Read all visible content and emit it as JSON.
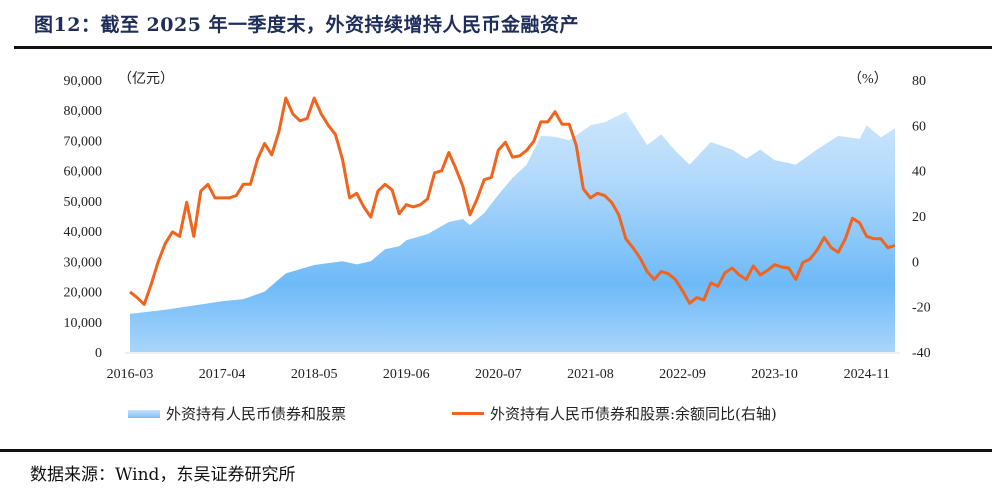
{
  "title": "图12：截至 2025 年一季度末，外资持续增持人民币金融资产",
  "source": "数据来源：Wind，东吴证券研究所",
  "colors": {
    "area_top": "#d9ecfc",
    "area_mid": "#6ebaf8",
    "line": "#f0641e"
  },
  "chart_data": {
    "type": "area+line",
    "title": "",
    "left_axis": {
      "unit_label": "（亿元）",
      "range": [
        0,
        90000
      ],
      "ticks": [
        "0",
        "10,000",
        "20,000",
        "30,000",
        "40,000",
        "50,000",
        "60,000",
        "70,000",
        "80,000",
        "90,000"
      ]
    },
    "right_axis": {
      "unit_label": "（%）",
      "range": [
        -40,
        80
      ],
      "ticks": [
        "-40",
        "-20",
        "0",
        "20",
        "40",
        "60",
        "80"
      ]
    },
    "x_axis": {
      "start": "2016-03",
      "end": "2025-03",
      "frequency": "monthly",
      "ticks": [
        "2016-03",
        "2017-04",
        "2018-05",
        "2019-06",
        "2020-07",
        "2021-08",
        "2022-09",
        "2023-10",
        "2024-11"
      ]
    },
    "grid": false,
    "legend_position": "bottom",
    "series": [
      {
        "name": "外资持有人民币债券和股票",
        "type": "area",
        "axis": "left",
        "points": [
          [
            "2016-03",
            12600
          ],
          [
            "2016-08",
            14000
          ],
          [
            "2017-04",
            16800
          ],
          [
            "2017-07",
            17500
          ],
          [
            "2017-10",
            20000
          ],
          [
            "2018-01",
            26000
          ],
          [
            "2018-05",
            28800
          ],
          [
            "2018-09",
            30000
          ],
          [
            "2018-11",
            29000
          ],
          [
            "2019-01",
            30000
          ],
          [
            "2019-03",
            34000
          ],
          [
            "2019-05",
            35000
          ],
          [
            "2019-06",
            37000
          ],
          [
            "2019-09",
            39000
          ],
          [
            "2019-12",
            43000
          ],
          [
            "2020-02",
            44000
          ],
          [
            "2020-03",
            42000
          ],
          [
            "2020-05",
            46000
          ],
          [
            "2020-07",
            52000
          ],
          [
            "2020-09",
            57600
          ],
          [
            "2020-11",
            62000
          ],
          [
            "2021-01",
            71500
          ],
          [
            "2021-03",
            71200
          ],
          [
            "2021-05",
            70000
          ],
          [
            "2021-08",
            75000
          ],
          [
            "2021-10",
            76000
          ],
          [
            "2022-01",
            79500
          ],
          [
            "2022-04",
            68500
          ],
          [
            "2022-06",
            72000
          ],
          [
            "2022-08",
            66500
          ],
          [
            "2022-10",
            62000
          ],
          [
            "2023-01",
            69500
          ],
          [
            "2023-04",
            67000
          ],
          [
            "2023-06",
            64000
          ],
          [
            "2023-08",
            67000
          ],
          [
            "2023-10",
            63500
          ],
          [
            "2024-01",
            62000
          ],
          [
            "2024-04",
            67000
          ],
          [
            "2024-07",
            71500
          ],
          [
            "2024-10",
            70500
          ],
          [
            "2024-11",
            75000
          ],
          [
            "2025-01",
            71000
          ],
          [
            "2025-03",
            74000
          ]
        ]
      },
      {
        "name": "外资持有人民币债券和股票:余额同比(右轴)",
        "type": "line",
        "axis": "right",
        "values": [
          -13.5,
          -16,
          -19,
          -10,
          0,
          8,
          13,
          11,
          26,
          11,
          31,
          34,
          28,
          28,
          28,
          29,
          34,
          34,
          45,
          52,
          47,
          57,
          72,
          65,
          62,
          63,
          72,
          65,
          60,
          56,
          45,
          28,
          30,
          24,
          19.5,
          31,
          34,
          31.5,
          21,
          25,
          24,
          25,
          27.5,
          39,
          40,
          48,
          41,
          33,
          20.5,
          27.5,
          36,
          37,
          49,
          52.5,
          46,
          46.5,
          49,
          53,
          61.5,
          61.5,
          66,
          60.5,
          60.5,
          51,
          32,
          28,
          30,
          29,
          26,
          20.5,
          10,
          6,
          1.5,
          -4.5,
          -8,
          -4.5,
          -5.5,
          -8,
          -13,
          -18.5,
          -16,
          -17,
          -9.5,
          -11,
          -5,
          -3,
          -6,
          -8,
          -2,
          -6,
          -4,
          -1.5,
          -2.5,
          -3,
          -8,
          -0.5,
          1,
          5,
          10.5,
          6,
          4,
          10,
          19,
          17,
          11,
          10,
          10,
          6,
          7
        ]
      }
    ]
  }
}
